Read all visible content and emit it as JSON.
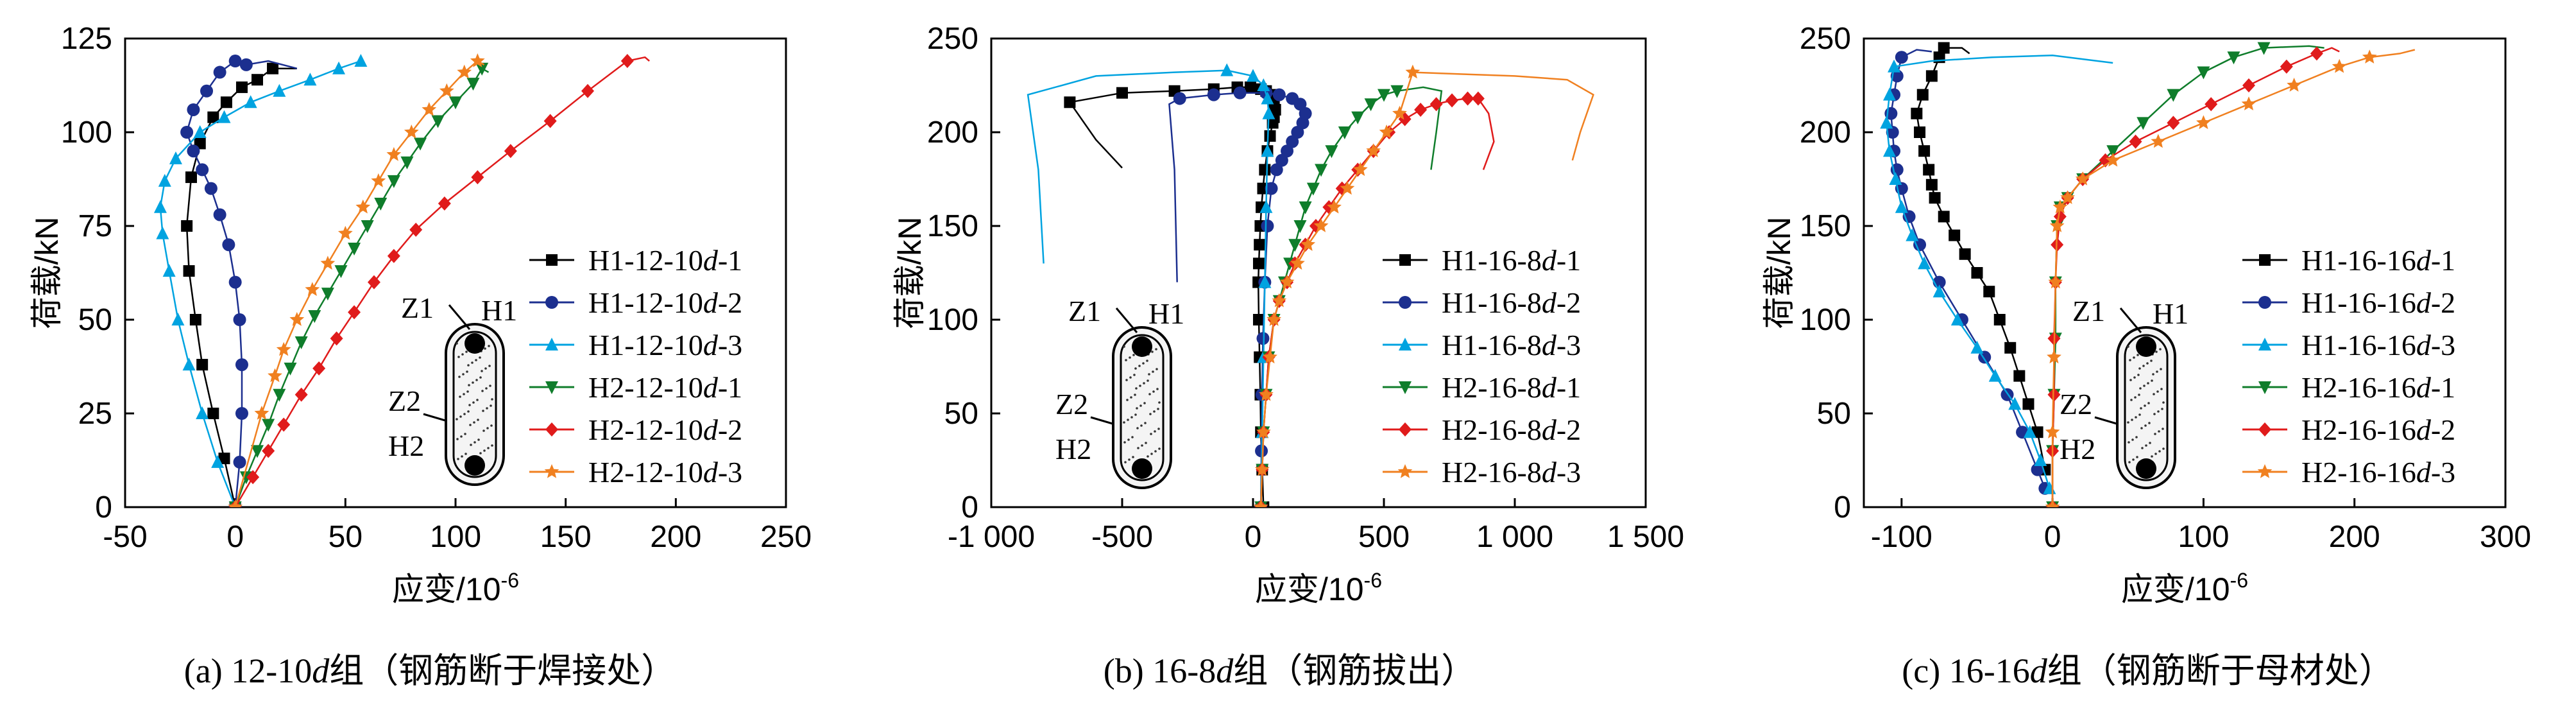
{
  "figure": {
    "captions": [
      {
        "prefix": "(a) 12-10",
        "ital": "d",
        "suffix": "组（钢筋断于焊接处）"
      },
      {
        "prefix": "(b) 16-8",
        "ital": "d",
        "suffix": "组（钢筋拔出）"
      },
      {
        "prefix": "(c) 16-16",
        "ital": "d",
        "suffix": "组（钢筋断于母材处）"
      }
    ],
    "inset_labels": {
      "z1": "Z1",
      "h1": "H1",
      "z2": "Z2",
      "h2": "H2"
    }
  },
  "chart_data": [
    {
      "type": "line",
      "xlabel": "应变/10-6",
      "ylabel": "荷载/kN",
      "xlim": [
        -50,
        250
      ],
      "ylim": [
        0,
        125
      ],
      "xticks": [
        -50,
        0,
        50,
        100,
        150,
        200,
        250
      ],
      "xtick_labels": [
        "-50",
        "0",
        "50",
        "100",
        "150",
        "200",
        "250"
      ],
      "yticks": [
        0,
        25,
        50,
        75,
        100,
        125
      ],
      "ytick_labels": [
        "0",
        "25",
        "50",
        "75",
        "100",
        "125"
      ],
      "legend_position": "right",
      "series": [
        {
          "name": "H1-12-10d-1",
          "color": "#000000",
          "marker": "square",
          "x": [
            0,
            -5,
            -10,
            -15,
            -18,
            -21,
            -22,
            -20,
            -16,
            -10,
            -4,
            3,
            10,
            17
          ],
          "y": [
            0,
            13,
            25,
            38,
            50,
            63,
            75,
            88,
            97,
            104,
            108,
            112,
            114,
            117
          ],
          "tail_x": [
            17,
            28
          ],
          "tail_y": [
            117,
            117
          ]
        },
        {
          "name": "H1-12-10d-2",
          "color": "#1c2f8f",
          "marker": "circle",
          "x": [
            0,
            2,
            3,
            3,
            2,
            0,
            -3,
            -7,
            -11,
            -15,
            -19,
            -22,
            -19,
            -13,
            -7,
            0,
            5
          ],
          "y": [
            0,
            12,
            25,
            38,
            50,
            60,
            70,
            78,
            85,
            90,
            95,
            100,
            106,
            111,
            116,
            119,
            118
          ],
          "tail_x": [
            5,
            15,
            28
          ],
          "tail_y": [
            118,
            119,
            117
          ]
        },
        {
          "name": "H1-12-10d-3",
          "color": "#00a3e0",
          "marker": "triangle",
          "x": [
            0,
            -8,
            -15,
            -21,
            -26,
            -30,
            -33,
            -34,
            -32,
            -27,
            -16,
            -5,
            7,
            20,
            34,
            47,
            57
          ],
          "y": [
            0,
            12,
            25,
            38,
            50,
            63,
            73,
            80,
            87,
            93,
            100,
            104,
            108,
            111,
            114,
            117,
            119
          ],
          "tail_x": [],
          "tail_y": []
        },
        {
          "name": "H2-12-10d-1",
          "color": "#0f7d2b",
          "marker": "triangle-down",
          "x": [
            0,
            5,
            10,
            15,
            20,
            25,
            30,
            36,
            42,
            48,
            54,
            60,
            66,
            72,
            78,
            84,
            92,
            100,
            108,
            112
          ],
          "y": [
            0,
            8,
            15,
            22,
            30,
            37,
            44,
            51,
            57,
            63,
            69,
            75,
            81,
            87,
            92,
            97,
            103,
            108,
            113,
            117
          ],
          "tail_x": [
            112,
            115
          ],
          "tail_y": [
            117,
            116
          ]
        },
        {
          "name": "H2-12-10d-2",
          "color": "#e01b1b",
          "marker": "diamond",
          "x": [
            0,
            8,
            15,
            22,
            30,
            38,
            46,
            54,
            63,
            72,
            82,
            95,
            110,
            125,
            143,
            160,
            178
          ],
          "y": [
            0,
            8,
            15,
            22,
            30,
            37,
            45,
            52,
            60,
            67,
            74,
            81,
            88,
            95,
            103,
            111,
            119
          ],
          "tail_x": [
            178,
            186,
            188
          ],
          "tail_y": [
            119,
            120,
            119
          ]
        },
        {
          "name": "H2-12-10d-3",
          "color": "#f08020",
          "marker": "star",
          "x": [
            0,
            12,
            18,
            22,
            28,
            35,
            42,
            50,
            58,
            65,
            72,
            80,
            88,
            96,
            104,
            110
          ],
          "y": [
            0,
            25,
            35,
            42,
            50,
            58,
            65,
            73,
            80,
            87,
            94,
            100,
            106,
            111,
            116,
            119
          ],
          "tail_x": [
            110,
            113
          ],
          "tail_y": [
            119,
            118
          ]
        }
      ]
    },
    {
      "type": "line",
      "xlabel": "应变/10-6",
      "ylabel": "荷载/kN",
      "xlim": [
        -1000,
        1500
      ],
      "ylim": [
        0,
        250
      ],
      "xticks": [
        -1000,
        -500,
        0,
        500,
        1000,
        1500
      ],
      "xtick_labels": [
        "-1 000",
        "-500",
        "0",
        "500",
        "1 000",
        "1 500"
      ],
      "yticks": [
        0,
        50,
        100,
        150,
        200,
        250
      ],
      "ytick_labels": [
        "0",
        "50",
        "100",
        "150",
        "200",
        "250"
      ],
      "legend_position": "right",
      "series": [
        {
          "name": "H1-16-8d-1",
          "color": "#000000",
          "marker": "square",
          "x": [
            40,
            35,
            30,
            28,
            25,
            22,
            20,
            22,
            25,
            28,
            32,
            38,
            45,
            55,
            65,
            75,
            80,
            85,
            80,
            70,
            50,
            30,
            -10,
            -60,
            -150,
            -300,
            -500,
            -700
          ],
          "y": [
            0,
            20,
            40,
            60,
            80,
            100,
            120,
            130,
            140,
            150,
            160,
            170,
            180,
            190,
            198,
            205,
            208,
            212,
            216,
            220,
            222,
            223,
            224,
            224,
            223,
            222,
            221,
            216
          ],
          "tail_x": [
            -700,
            -600,
            -500
          ],
          "tail_y": [
            216,
            196,
            181
          ]
        },
        {
          "name": "H1-16-8d-2",
          "color": "#1c2f8f",
          "marker": "circle",
          "x": [
            30,
            32,
            34,
            38,
            45,
            55,
            70,
            90,
            110,
            130,
            150,
            170,
            190,
            200,
            180,
            150,
            100,
            50,
            -50,
            -150,
            -280
          ],
          "y": [
            0,
            30,
            60,
            90,
            120,
            150,
            170,
            180,
            185,
            190,
            195,
            200,
            205,
            210,
            215,
            218,
            220,
            221,
            221,
            220,
            218
          ],
          "tail_x": [
            -280,
            -320,
            -300,
            -290
          ],
          "tail_y": [
            218,
            215,
            180,
            120
          ]
        },
        {
          "name": "H1-16-8d-3",
          "color": "#00a3e0",
          "marker": "triangle",
          "x": [
            30,
            35,
            40,
            45,
            50,
            55,
            60,
            55,
            40,
            0,
            -100
          ],
          "y": [
            0,
            40,
            80,
            120,
            160,
            190,
            210,
            218,
            225,
            230,
            233
          ],
          "tail_x": [
            -100,
            -300,
            -600,
            -860,
            -820,
            -800
          ],
          "tail_y": [
            233,
            232,
            230,
            220,
            180,
            130
          ]
        },
        {
          "name": "H2-16-8d-1",
          "color": "#0f7d2b",
          "marker": "triangle-down",
          "x": [
            30,
            35,
            40,
            50,
            60,
            80,
            100,
            120,
            140,
            160,
            180,
            200,
            230,
            260,
            300,
            350,
            400,
            450,
            500,
            550
          ],
          "y": [
            0,
            20,
            40,
            60,
            80,
            100,
            110,
            120,
            130,
            140,
            150,
            160,
            170,
            180,
            190,
            200,
            208,
            215,
            220,
            222
          ],
          "tail_x": [
            550,
            650,
            720,
            700,
            680
          ],
          "tail_y": [
            222,
            224,
            222,
            200,
            180
          ]
        },
        {
          "name": "H2-16-8d-2",
          "color": "#e01b1b",
          "marker": "diamond",
          "x": [
            30,
            35,
            40,
            50,
            60,
            80,
            100,
            130,
            160,
            200,
            240,
            290,
            340,
            400,
            460,
            520,
            580,
            640,
            700,
            760,
            820,
            860
          ],
          "y": [
            0,
            20,
            40,
            60,
            80,
            100,
            110,
            120,
            130,
            140,
            150,
            160,
            170,
            180,
            190,
            200,
            207,
            212,
            215,
            217,
            218,
            218
          ],
          "tail_x": [
            860,
            900,
            920,
            880
          ],
          "tail_y": [
            218,
            210,
            195,
            180
          ]
        },
        {
          "name": "H2-16-8d-3",
          "color": "#f08020",
          "marker": "star",
          "x": [
            30,
            35,
            40,
            50,
            65,
            80,
            100,
            130,
            170,
            210,
            260,
            310,
            360,
            410,
            460,
            510,
            560,
            610
          ],
          "y": [
            0,
            20,
            40,
            60,
            80,
            100,
            110,
            120,
            130,
            140,
            150,
            160,
            170,
            180,
            190,
            200,
            210,
            232
          ],
          "tail_x": [
            610,
            800,
            1000,
            1200,
            1300,
            1250,
            1220
          ],
          "tail_y": [
            232,
            231,
            230,
            228,
            220,
            200,
            185
          ]
        }
      ]
    },
    {
      "type": "line",
      "xlabel": "应变/10-6",
      "ylabel": "荷载/kN",
      "xlim": [
        -125,
        300
      ],
      "ylim": [
        0,
        250
      ],
      "xticks": [
        -100,
        0,
        100,
        200,
        300
      ],
      "xtick_labels": [
        "-100",
        "0",
        "100",
        "200",
        "300"
      ],
      "yticks": [
        0,
        50,
        100,
        150,
        200,
        250
      ],
      "ytick_labels": [
        "0",
        "50",
        "100",
        "150",
        "200",
        "250"
      ],
      "legend_position": "right",
      "series": [
        {
          "name": "H1-16-16d-1",
          "color": "#000000",
          "marker": "square",
          "x": [
            -5,
            -10,
            -16,
            -22,
            -28,
            -35,
            -42,
            -50,
            -58,
            -65,
            -72,
            -78,
            -80,
            -82,
            -85,
            -88,
            -90,
            -86,
            -80,
            -75,
            -72
          ],
          "y": [
            20,
            40,
            55,
            70,
            85,
            100,
            115,
            125,
            135,
            145,
            155,
            165,
            172,
            180,
            190,
            200,
            210,
            220,
            230,
            240,
            245
          ],
          "tail_x": [
            -72,
            -60,
            -55
          ],
          "tail_y": [
            245,
            245,
            242
          ]
        },
        {
          "name": "H1-16-16d-2",
          "color": "#1c2f8f",
          "marker": "circle",
          "x": [
            -5,
            -10,
            -20,
            -30,
            -45,
            -60,
            -75,
            -88,
            -95,
            -100,
            -103,
            -105,
            -106,
            -107,
            -105,
            -103,
            -100
          ],
          "y": [
            10,
            20,
            40,
            60,
            80,
            100,
            120,
            140,
            155,
            170,
            180,
            190,
            200,
            210,
            220,
            230,
            240
          ],
          "tail_x": [
            -100,
            -90,
            -80
          ],
          "tail_y": [
            240,
            244,
            243
          ]
        },
        {
          "name": "H1-16-16d-3",
          "color": "#00a3e0",
          "marker": "triangle",
          "x": [
            -2,
            -8,
            -15,
            -25,
            -38,
            -50,
            -63,
            -75,
            -85,
            -93,
            -100,
            -104,
            -108,
            -110,
            -108,
            -105
          ],
          "y": [
            10,
            25,
            40,
            55,
            70,
            85,
            100,
            115,
            130,
            145,
            160,
            175,
            190,
            205,
            220,
            235
          ],
          "tail_x": [
            -105,
            -80,
            -40,
            0,
            40
          ],
          "tail_y": [
            235,
            238,
            240,
            241,
            237
          ]
        },
        {
          "name": "H2-16-16d-1",
          "color": "#0f7d2b",
          "marker": "triangle-down",
          "x": [
            0,
            0,
            1,
            2,
            2,
            3,
            5,
            10,
            20,
            40,
            60,
            80,
            100,
            120,
            140
          ],
          "y": [
            0,
            30,
            60,
            90,
            120,
            150,
            160,
            165,
            175,
            190,
            205,
            220,
            232,
            240,
            245
          ],
          "tail_x": [
            140,
            170,
            180
          ],
          "tail_y": [
            245,
            246,
            245
          ]
        },
        {
          "name": "H2-16-16d-2",
          "color": "#e01b1b",
          "marker": "diamond",
          "x": [
            0,
            0,
            1,
            1,
            2,
            3,
            5,
            10,
            20,
            35,
            55,
            80,
            105,
            130,
            155,
            175
          ],
          "y": [
            0,
            30,
            60,
            90,
            120,
            140,
            155,
            165,
            175,
            185,
            195,
            205,
            215,
            225,
            235,
            242
          ],
          "tail_x": [
            175,
            185,
            190
          ],
          "tail_y": [
            242,
            245,
            243
          ]
        },
        {
          "name": "H2-16-16d-3",
          "color": "#f08020",
          "marker": "star",
          "x": [
            0,
            0,
            1,
            2,
            3,
            5,
            10,
            20,
            40,
            70,
            100,
            130,
            160,
            190,
            210
          ],
          "y": [
            0,
            40,
            80,
            120,
            150,
            160,
            165,
            175,
            185,
            195,
            205,
            215,
            225,
            235,
            240
          ],
          "tail_x": [
            210,
            230,
            240
          ],
          "tail_y": [
            240,
            242,
            244
          ]
        }
      ]
    }
  ]
}
